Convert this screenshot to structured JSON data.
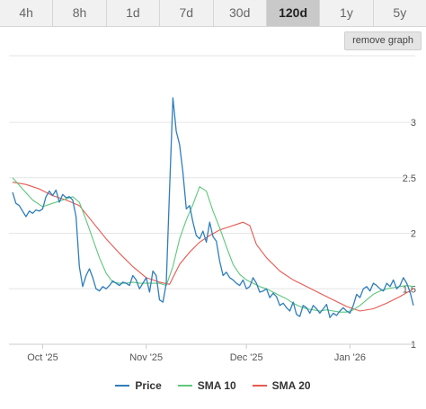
{
  "tabs": [
    {
      "label": "4h",
      "active": false
    },
    {
      "label": "8h",
      "active": false
    },
    {
      "label": "1d",
      "active": false
    },
    {
      "label": "7d",
      "active": false
    },
    {
      "label": "30d",
      "active": false
    },
    {
      "label": "120d",
      "active": true
    },
    {
      "label": "1y",
      "active": false
    },
    {
      "label": "5y",
      "active": false
    }
  ],
  "remove_graph_label": "remove graph",
  "chart_data": {
    "type": "line",
    "title": "",
    "xlabel": "",
    "ylabel": "",
    "x_ticks": [
      "Oct '25",
      "Nov '25",
      "Dec '25",
      "Jan '26"
    ],
    "y_ticks": [
      "1",
      "1.5",
      "2",
      "2.5",
      "3"
    ],
    "ylim": [
      1,
      3.6
    ],
    "x_range_days": [
      0,
      120
    ],
    "x_tick_days": [
      9,
      40,
      70,
      101
    ],
    "grid": true,
    "legend_position": "bottom",
    "series": [
      {
        "name": "Price",
        "color": "#2f7ebc",
        "points": [
          [
            0,
            2.37
          ],
          [
            1,
            2.27
          ],
          [
            2,
            2.25
          ],
          [
            3,
            2.2
          ],
          [
            4,
            2.15
          ],
          [
            5,
            2.2
          ],
          [
            6,
            2.18
          ],
          [
            7,
            2.21
          ],
          [
            8,
            2.2
          ],
          [
            9,
            2.22
          ],
          [
            10,
            2.33
          ],
          [
            11,
            2.38
          ],
          [
            12,
            2.34
          ],
          [
            13,
            2.39
          ],
          [
            14,
            2.28
          ],
          [
            15,
            2.35
          ],
          [
            16,
            2.32
          ],
          [
            17,
            2.33
          ],
          [
            18,
            2.3
          ],
          [
            19,
            2.15
          ],
          [
            20,
            1.7
          ],
          [
            21,
            1.52
          ],
          [
            22,
            1.62
          ],
          [
            23,
            1.68
          ],
          [
            24,
            1.6
          ],
          [
            25,
            1.5
          ],
          [
            26,
            1.48
          ],
          [
            27,
            1.52
          ],
          [
            28,
            1.5
          ],
          [
            29,
            1.53
          ],
          [
            30,
            1.57
          ],
          [
            31,
            1.55
          ],
          [
            32,
            1.53
          ],
          [
            33,
            1.56
          ],
          [
            34,
            1.55
          ],
          [
            35,
            1.53
          ],
          [
            36,
            1.62
          ],
          [
            37,
            1.58
          ],
          [
            38,
            1.5
          ],
          [
            39,
            1.55
          ],
          [
            40,
            1.6
          ],
          [
            41,
            1.47
          ],
          [
            42,
            1.66
          ],
          [
            43,
            1.62
          ],
          [
            44,
            1.4
          ],
          [
            45,
            1.38
          ],
          [
            46,
            1.55
          ],
          [
            47,
            2.4
          ],
          [
            48,
            3.22
          ],
          [
            49,
            2.92
          ],
          [
            50,
            2.8
          ],
          [
            51,
            2.55
          ],
          [
            52,
            2.22
          ],
          [
            53,
            2.25
          ],
          [
            54,
            2.1
          ],
          [
            55,
            1.98
          ],
          [
            56,
            1.95
          ],
          [
            57,
            2.02
          ],
          [
            58,
            1.92
          ],
          [
            59,
            2.1
          ],
          [
            60,
            1.97
          ],
          [
            61,
            1.93
          ],
          [
            62,
            1.75
          ],
          [
            63,
            1.62
          ],
          [
            64,
            1.65
          ],
          [
            65,
            1.6
          ],
          [
            66,
            1.58
          ],
          [
            67,
            1.55
          ],
          [
            68,
            1.53
          ],
          [
            69,
            1.58
          ],
          [
            70,
            1.5
          ],
          [
            71,
            1.52
          ],
          [
            72,
            1.6
          ],
          [
            73,
            1.55
          ],
          [
            74,
            1.47
          ],
          [
            75,
            1.48
          ],
          [
            76,
            1.5
          ],
          [
            77,
            1.42
          ],
          [
            78,
            1.46
          ],
          [
            79,
            1.43
          ],
          [
            80,
            1.35
          ],
          [
            81,
            1.37
          ],
          [
            82,
            1.33
          ],
          [
            83,
            1.3
          ],
          [
            84,
            1.38
          ],
          [
            85,
            1.27
          ],
          [
            86,
            1.25
          ],
          [
            87,
            1.35
          ],
          [
            88,
            1.33
          ],
          [
            89,
            1.28
          ],
          [
            90,
            1.35
          ],
          [
            91,
            1.32
          ],
          [
            92,
            1.28
          ],
          [
            93,
            1.32
          ],
          [
            94,
            1.36
          ],
          [
            95,
            1.24
          ],
          [
            96,
            1.28
          ],
          [
            97,
            1.26
          ],
          [
            98,
            1.3
          ],
          [
            99,
            1.33
          ],
          [
            100,
            1.3
          ],
          [
            101,
            1.28
          ],
          [
            102,
            1.35
          ],
          [
            103,
            1.45
          ],
          [
            104,
            1.42
          ],
          [
            105,
            1.5
          ],
          [
            106,
            1.52
          ],
          [
            107,
            1.48
          ],
          [
            108,
            1.55
          ],
          [
            109,
            1.53
          ],
          [
            110,
            1.5
          ],
          [
            111,
            1.48
          ],
          [
            112,
            1.55
          ],
          [
            113,
            1.52
          ],
          [
            114,
            1.58
          ],
          [
            115,
            1.5
          ],
          [
            116,
            1.53
          ],
          [
            117,
            1.6
          ],
          [
            118,
            1.55
          ],
          [
            119,
            1.47
          ],
          [
            120,
            1.35
          ]
        ]
      },
      {
        "name": "SMA 10",
        "color": "#5ec77c",
        "points": [
          [
            0,
            2.5
          ],
          [
            3,
            2.4
          ],
          [
            6,
            2.3
          ],
          [
            9,
            2.24
          ],
          [
            12,
            2.27
          ],
          [
            15,
            2.3
          ],
          [
            18,
            2.33
          ],
          [
            20,
            2.28
          ],
          [
            22,
            2.12
          ],
          [
            24,
            1.95
          ],
          [
            26,
            1.78
          ],
          [
            28,
            1.64
          ],
          [
            30,
            1.56
          ],
          [
            32,
            1.55
          ],
          [
            34,
            1.55
          ],
          [
            36,
            1.56
          ],
          [
            38,
            1.55
          ],
          [
            40,
            1.55
          ],
          [
            42,
            1.55
          ],
          [
            44,
            1.55
          ],
          [
            46,
            1.53
          ],
          [
            48,
            1.7
          ],
          [
            50,
            1.95
          ],
          [
            52,
            2.12
          ],
          [
            54,
            2.26
          ],
          [
            56,
            2.42
          ],
          [
            58,
            2.38
          ],
          [
            60,
            2.2
          ],
          [
            62,
            2.05
          ],
          [
            64,
            1.88
          ],
          [
            66,
            1.72
          ],
          [
            68,
            1.63
          ],
          [
            70,
            1.58
          ],
          [
            72,
            1.55
          ],
          [
            74,
            1.52
          ],
          [
            76,
            1.5
          ],
          [
            78,
            1.47
          ],
          [
            80,
            1.44
          ],
          [
            82,
            1.41
          ],
          [
            84,
            1.37
          ],
          [
            86,
            1.34
          ],
          [
            88,
            1.32
          ],
          [
            90,
            1.31
          ],
          [
            92,
            1.3
          ],
          [
            94,
            1.31
          ],
          [
            96,
            1.3
          ],
          [
            98,
            1.29
          ],
          [
            100,
            1.29
          ],
          [
            102,
            1.31
          ],
          [
            104,
            1.35
          ],
          [
            106,
            1.4
          ],
          [
            108,
            1.45
          ],
          [
            110,
            1.48
          ],
          [
            112,
            1.5
          ],
          [
            114,
            1.51
          ],
          [
            116,
            1.52
          ],
          [
            118,
            1.53
          ],
          [
            120,
            1.52
          ]
        ]
      },
      {
        "name": "SMA 20",
        "color": "#e8584f",
        "points": [
          [
            0,
            2.46
          ],
          [
            4,
            2.44
          ],
          [
            8,
            2.4
          ],
          [
            12,
            2.34
          ],
          [
            16,
            2.3
          ],
          [
            20,
            2.25
          ],
          [
            24,
            2.1
          ],
          [
            28,
            1.95
          ],
          [
            32,
            1.82
          ],
          [
            36,
            1.7
          ],
          [
            40,
            1.6
          ],
          [
            44,
            1.56
          ],
          [
            47,
            1.54
          ],
          [
            50,
            1.72
          ],
          [
            53,
            1.83
          ],
          [
            56,
            1.92
          ],
          [
            59,
            1.98
          ],
          [
            62,
            2.03
          ],
          [
            65,
            2.06
          ],
          [
            67,
            2.08
          ],
          [
            69,
            2.1
          ],
          [
            71,
            2.07
          ],
          [
            73,
            1.9
          ],
          [
            76,
            1.78
          ],
          [
            80,
            1.66
          ],
          [
            84,
            1.58
          ],
          [
            88,
            1.52
          ],
          [
            92,
            1.46
          ],
          [
            96,
            1.4
          ],
          [
            100,
            1.34
          ],
          [
            104,
            1.3
          ],
          [
            108,
            1.32
          ],
          [
            112,
            1.37
          ],
          [
            116,
            1.43
          ],
          [
            120,
            1.5
          ]
        ]
      }
    ]
  }
}
